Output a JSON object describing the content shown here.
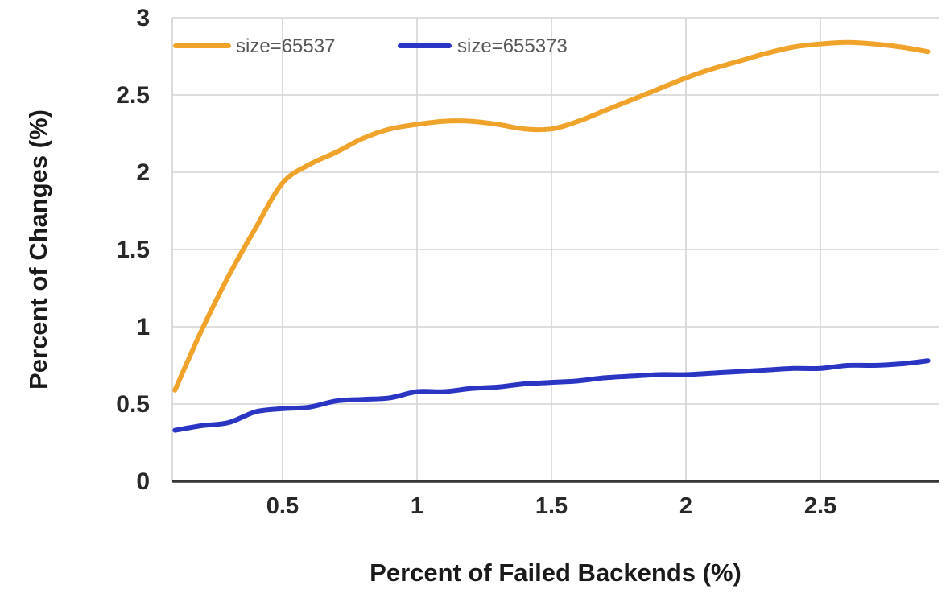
{
  "chart_data": {
    "type": "line",
    "title": "",
    "xlabel": "Percent of Failed Backends (%)",
    "ylabel": "Percent of Changes (%)",
    "x": [
      0.1,
      0.2,
      0.3,
      0.4,
      0.5,
      0.6,
      0.7,
      0.8,
      0.9,
      1.0,
      1.1,
      1.2,
      1.3,
      1.4,
      1.5,
      1.6,
      1.7,
      1.8,
      1.9,
      2.0,
      2.1,
      2.2,
      2.3,
      2.4,
      2.5,
      2.6,
      2.7,
      2.8,
      2.9
    ],
    "series": [
      {
        "name": "size=65537",
        "color": "#EFA32B",
        "values": [
          0.59,
          0.98,
          1.33,
          1.64,
          1.93,
          2.05,
          2.13,
          2.22,
          2.28,
          2.31,
          2.33,
          2.33,
          2.31,
          2.28,
          2.28,
          2.33,
          2.4,
          2.47,
          2.54,
          2.61,
          2.67,
          2.72,
          2.77,
          2.81,
          2.83,
          2.84,
          2.83,
          2.81,
          2.78
        ]
      },
      {
        "name": "size=655373",
        "color": "#2A35C3",
        "values": [
          0.33,
          0.36,
          0.38,
          0.45,
          0.47,
          0.48,
          0.52,
          0.53,
          0.54,
          0.58,
          0.58,
          0.6,
          0.61,
          0.63,
          0.64,
          0.65,
          0.67,
          0.68,
          0.69,
          0.69,
          0.7,
          0.71,
          0.72,
          0.73,
          0.73,
          0.75,
          0.75,
          0.76,
          0.78
        ]
      }
    ],
    "xticks": [
      0.5,
      1,
      1.5,
      2,
      2.5
    ],
    "xtick_labels": [
      "0.5",
      "1",
      "1.5",
      "2",
      "2.5"
    ],
    "yticks": [
      0,
      0.5,
      1,
      1.5,
      2,
      2.5,
      3
    ],
    "ytick_labels": [
      "0",
      "0.5",
      "1",
      "1.5",
      "2",
      "2.5",
      "3"
    ],
    "xlim": [
      0.09,
      2.94
    ],
    "ylim": [
      0,
      3
    ],
    "grid": true,
    "legend_position": "top-left-inside"
  },
  "colors": {
    "background": "#ffffff",
    "gridline": "#d4d4d4",
    "axis_line": "#373737",
    "tick_label": "#282828",
    "axis_title": "#1a1a1a",
    "legend_text": "#58585a"
  }
}
